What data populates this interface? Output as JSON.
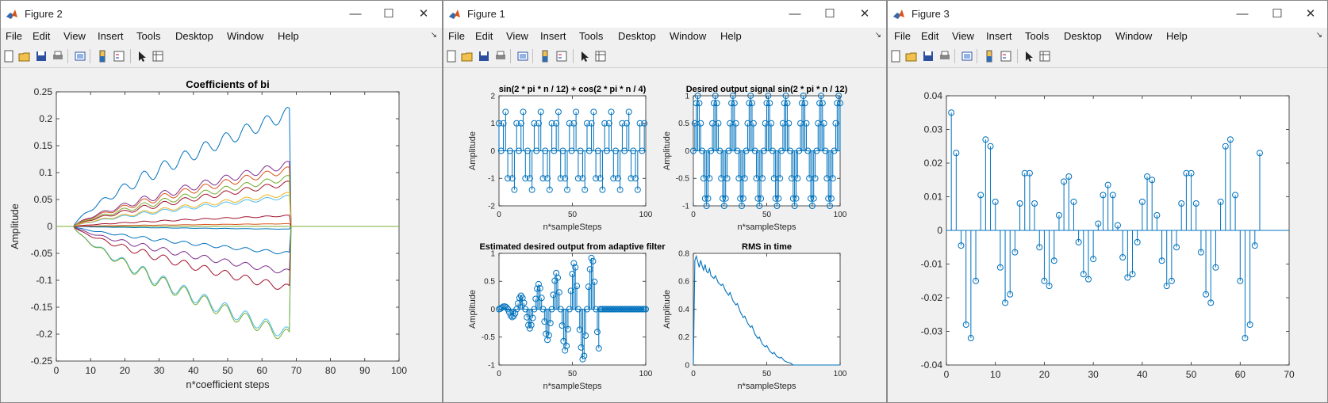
{
  "windows": [
    {
      "title": "Figure 2"
    },
    {
      "title": "Figure 1"
    },
    {
      "title": "Figure 3"
    }
  ],
  "menu": [
    "File",
    "Edit",
    "View",
    "Insert",
    "Tools",
    "Desktop",
    "Window",
    "Help"
  ],
  "controls": {
    "minimize": "—",
    "maximize": "☐",
    "close": "✕",
    "dock": "↘"
  },
  "icons": [
    "new-figure-icon",
    "open-file-icon",
    "save-icon",
    "print-icon",
    "link-plot-icon",
    "insert-colorbar-icon",
    "insert-legend-icon",
    "edit-plot-icon",
    "property-inspector-icon"
  ],
  "colors": {
    "line": "#0072bd",
    "matlab_orange": "#d95319"
  },
  "chart_data": [
    {
      "type": "line",
      "title": "Coefficients of bi",
      "xlabel": "n*coefficient steps",
      "ylabel": "Amplitude",
      "xlim": [
        0,
        100
      ],
      "ylim": [
        -0.25,
        0.25
      ],
      "xticks": [
        "0",
        "10",
        "20",
        "30",
        "40",
        "50",
        "60",
        "70",
        "80",
        "90",
        "100"
      ],
      "yticks": [
        "0.25",
        "0.2",
        "0.15",
        "0.1",
        "0.05",
        "0",
        "-0.05",
        "-0.1",
        "-0.15",
        "-0.2",
        "-0.25"
      ],
      "note_end_x": 68,
      "series": [
        {
          "color": "#0072bd",
          "final": 0.21
        },
        {
          "color": "#7e2f8e",
          "final": 0.115
        },
        {
          "color": "#d95319",
          "final": 0.105
        },
        {
          "color": "#a2142f",
          "final": 0.08
        },
        {
          "color": "#77ac30",
          "final": 0.09
        },
        {
          "color": "#4dbeee",
          "final": 0.055
        },
        {
          "color": "#edb120",
          "final": 0.06
        },
        {
          "color": "#a2142f",
          "final": 0.02
        },
        {
          "color": "#77ac30",
          "final": 0.0
        },
        {
          "color": "#0072bd",
          "final": -0.005
        },
        {
          "color": "#d95319",
          "final": 0.005
        },
        {
          "color": "#0072bd",
          "final": -0.05
        },
        {
          "color": "#7e2f8e",
          "final": -0.085
        },
        {
          "color": "#a2142f",
          "final": -0.115
        },
        {
          "color": "#4dbeee",
          "final": -0.2
        },
        {
          "color": "#77ac30",
          "final": -0.205
        }
      ]
    },
    {
      "type": "stem",
      "title": "sin(2 * pi * n / 12) + cos(2 * pi * n / 4)",
      "xlabel": "n*sampleSteps",
      "ylabel": "Amplitude",
      "xlim": [
        0,
        100
      ],
      "ylim": [
        -2,
        2
      ],
      "xticks": [
        "0",
        "50",
        "100"
      ],
      "yticks": [
        "2",
        "1",
        "0",
        "-1",
        "-2"
      ]
    },
    {
      "type": "stem",
      "title": "Desired output signal sin(2 * pi * n / 12)",
      "xlabel": "n*sampleSteps",
      "ylabel": "Amplitude",
      "xlim": [
        0,
        100
      ],
      "ylim": [
        -1,
        1
      ],
      "xticks": [
        "0",
        "50",
        "100"
      ],
      "yticks": [
        "1",
        "0.5",
        "0",
        "-0.5",
        "-1"
      ]
    },
    {
      "type": "stem",
      "title": "Estimated desired output from adaptive filter",
      "xlabel": "n*sampleSteps",
      "ylabel": "Amplitude",
      "xlim": [
        0,
        100
      ],
      "ylim": [
        -1,
        1
      ],
      "xticks": [
        "0",
        "50",
        "100"
      ],
      "yticks": [
        "1",
        "0.5",
        "0",
        "-0.5",
        "-1"
      ]
    },
    {
      "type": "line",
      "title": "RMS in time",
      "xlabel": "n*sampleSteps",
      "ylabel": "Amplitude",
      "xlim": [
        0,
        100
      ],
      "ylim": [
        0,
        0.8
      ],
      "xticks": [
        "0",
        "50",
        "100"
      ],
      "yticks": [
        "0.8",
        "0.6",
        "0.4",
        "0.2",
        "0"
      ],
      "points": [
        [
          0,
          0
        ],
        [
          1,
          0.75
        ],
        [
          2,
          0.78
        ],
        [
          3,
          0.74
        ],
        [
          4,
          0.7
        ],
        [
          5,
          0.75
        ],
        [
          6,
          0.71
        ],
        [
          7,
          0.68
        ],
        [
          8,
          0.72
        ],
        [
          9,
          0.67
        ],
        [
          10,
          0.66
        ],
        [
          11,
          0.69
        ],
        [
          12,
          0.64
        ],
        [
          14,
          0.62
        ],
        [
          15,
          0.64
        ],
        [
          17,
          0.59
        ],
        [
          19,
          0.57
        ],
        [
          20,
          0.58
        ],
        [
          22,
          0.53
        ],
        [
          24,
          0.5
        ],
        [
          25,
          0.52
        ],
        [
          27,
          0.46
        ],
        [
          29,
          0.43
        ],
        [
          30,
          0.44
        ],
        [
          32,
          0.38
        ],
        [
          34,
          0.34
        ],
        [
          35,
          0.35
        ],
        [
          37,
          0.3
        ],
        [
          39,
          0.27
        ],
        [
          40,
          0.28
        ],
        [
          42,
          0.22
        ],
        [
          44,
          0.19
        ],
        [
          45,
          0.2
        ],
        [
          47,
          0.15
        ],
        [
          49,
          0.13
        ],
        [
          50,
          0.14
        ],
        [
          52,
          0.1
        ],
        [
          54,
          0.08
        ],
        [
          55,
          0.09
        ],
        [
          57,
          0.06
        ],
        [
          59,
          0.05
        ],
        [
          60,
          0.055
        ],
        [
          62,
          0.03
        ],
        [
          64,
          0.02
        ],
        [
          66,
          0.015
        ],
        [
          68,
          0.0
        ],
        [
          100,
          0.0
        ]
      ]
    },
    {
      "type": "stem",
      "title": "",
      "xlabel": "",
      "ylabel": "",
      "xlim": [
        0,
        70
      ],
      "ylim": [
        -0.04,
        0.04
      ],
      "xticks": [
        "0",
        "10",
        "20",
        "30",
        "40",
        "50",
        "60",
        "70"
      ],
      "yticks": [
        "0.04",
        "0.03",
        "0.02",
        "0.01",
        "0",
        "-0.01",
        "-0.02",
        "-0.03",
        "-0.04"
      ],
      "x": [
        1,
        2,
        3,
        4,
        5,
        6,
        7,
        8,
        9,
        10,
        11,
        12,
        13,
        14,
        15,
        16,
        17,
        18,
        19,
        20,
        21,
        22,
        23,
        24,
        25,
        26,
        27,
        28,
        29,
        30,
        31,
        32,
        33,
        34,
        35,
        36,
        37,
        38,
        39,
        40,
        41,
        42,
        43,
        44,
        45,
        46,
        47,
        48,
        49,
        50,
        51,
        52,
        53,
        54,
        55,
        56,
        57,
        58,
        59,
        60,
        61,
        62,
        63,
        64
      ],
      "values": [
        0.035,
        0.023,
        -0.0045,
        -0.028,
        -0.032,
        -0.015,
        0.0105,
        0.027,
        0.025,
        0.0085,
        -0.011,
        -0.0215,
        -0.019,
        -0.0065,
        0.008,
        0.017,
        0.017,
        0.008,
        -0.005,
        -0.015,
        -0.0165,
        -0.009,
        0.0045,
        0.0145,
        0.016,
        0.0085,
        -0.0035,
        -0.013,
        -0.0145,
        -0.0085,
        0.002,
        0.0105,
        0.0135,
        0.0105,
        0.0015,
        -0.008,
        -0.014,
        -0.013,
        -0.0035,
        0.0085,
        0.016,
        0.015,
        0.0045,
        -0.009,
        -0.0165,
        -0.015,
        -0.005,
        0.008,
        0.017,
        0.017,
        0.008,
        -0.0065,
        -0.019,
        -0.0215,
        -0.011,
        0.0085,
        0.025,
        0.027,
        0.0105,
        -0.015,
        -0.032,
        -0.028,
        -0.0045,
        0.023
      ]
    }
  ]
}
